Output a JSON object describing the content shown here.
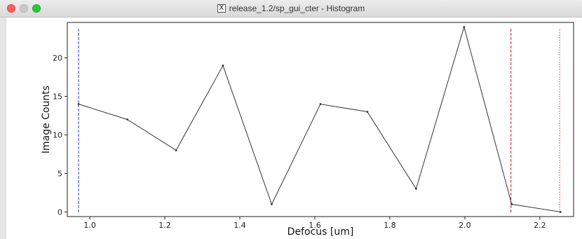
{
  "window": {
    "title": "release_1.2/sp_gui_cter - Histogram",
    "title_icon": "X"
  },
  "chart_data": {
    "type": "line",
    "xlabel": "Defocus [um]",
    "ylabel": "Image Counts",
    "xlim": [
      0.94,
      2.29
    ],
    "ylim": [
      -0.6,
      24.6
    ],
    "xticks": [
      "1.0",
      "1.2",
      "1.4",
      "1.6",
      "1.8",
      "2.0",
      "2.2"
    ],
    "xtick_values": [
      1.0,
      1.2,
      1.4,
      1.6,
      1.8,
      2.0,
      2.2
    ],
    "yticks": [
      "0",
      "5",
      "10",
      "15",
      "20"
    ],
    "ytick_values": [
      0,
      5,
      10,
      15,
      20
    ],
    "grid": false,
    "series": [
      {
        "color": "#333333",
        "x": [
          0.97,
          1.1,
          1.23,
          1.355,
          1.485,
          1.615,
          1.74,
          1.87,
          1.998,
          2.125,
          2.255
        ],
        "y": [
          14,
          12,
          8,
          19,
          1,
          14,
          13,
          3,
          24,
          1,
          0
        ]
      }
    ],
    "vlines": [
      {
        "x": 0.97,
        "color": "#1f3fd6",
        "style": "dashed"
      },
      {
        "x": 2.123,
        "color": "#c0182a",
        "style": "dashed"
      },
      {
        "x": 2.253,
        "color": "#e0303a",
        "style": "dotted"
      }
    ]
  }
}
